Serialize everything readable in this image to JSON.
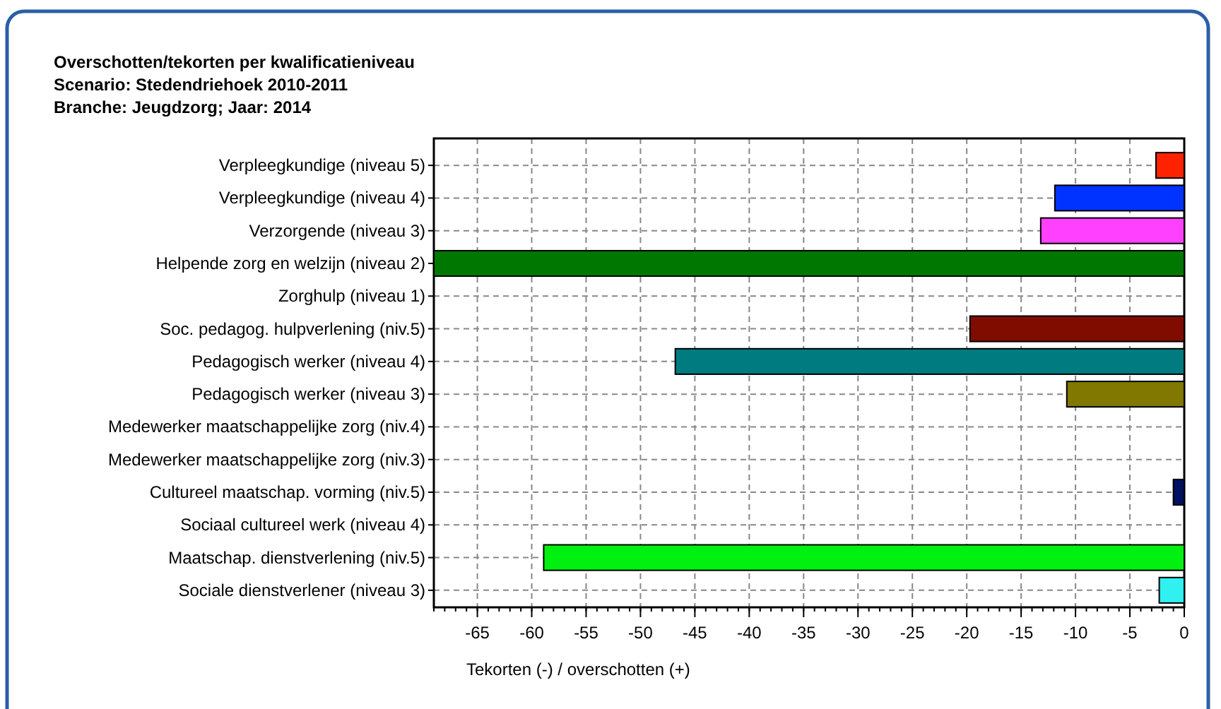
{
  "chart_data": {
    "type": "bar",
    "orientation": "horizontal",
    "title": "Overschotten/tekorten per kwalificatieniveau",
    "subtitle": "Scenario: Stedendriehoek 2010-2011",
    "annotations": [
      "Branche: Jeugdzorg; Jaar: 2014"
    ],
    "xlabel": "Tekorten (-) / overschotten (+)",
    "categories": [
      "Verpleegkundige (niveau 5)",
      "Verpleegkundige (niveau 4)",
      "Verzorgende (niveau 3)",
      "Helpende zorg en welzijn (niveau 2)",
      "Zorghulp (niveau 1)",
      "Soc. pedagog. hulpverlening (niv.5)",
      "Pedagogisch werker (niveau 4)",
      "Pedagogisch werker (niveau 3)",
      "Medewerker maatschappelijke zorg (niv.4)",
      "Medewerker maatschappelijke zorg (niv.3)",
      "Cultureel maatschap. vorming (niv.5)",
      "Sociaal cultureel werk (niveau 4)",
      "Maatschap. dienstverlening (niv.5)",
      "Sociale dienstverlener (niveau 3)"
    ],
    "values": [
      -2.6,
      -11.9,
      -13.2,
      -69,
      null,
      -19.7,
      -46.8,
      -10.8,
      null,
      null,
      -1,
      null,
      -58.9,
      -2.3
    ],
    "colors": [
      "#ff2200",
      "#0033ff",
      "#ff40ff",
      "#007800",
      null,
      "#800c00",
      "#007c80",
      "#807800",
      null,
      null,
      "#001060",
      null,
      "#00f010",
      "#30f0f0"
    ],
    "xlim": [
      -69,
      0
    ],
    "xticks": [
      -65,
      -60,
      -55,
      -50,
      -45,
      -40,
      -35,
      -30,
      -25,
      -20,
      -15,
      -10,
      -5,
      0
    ],
    "grid": true
  }
}
